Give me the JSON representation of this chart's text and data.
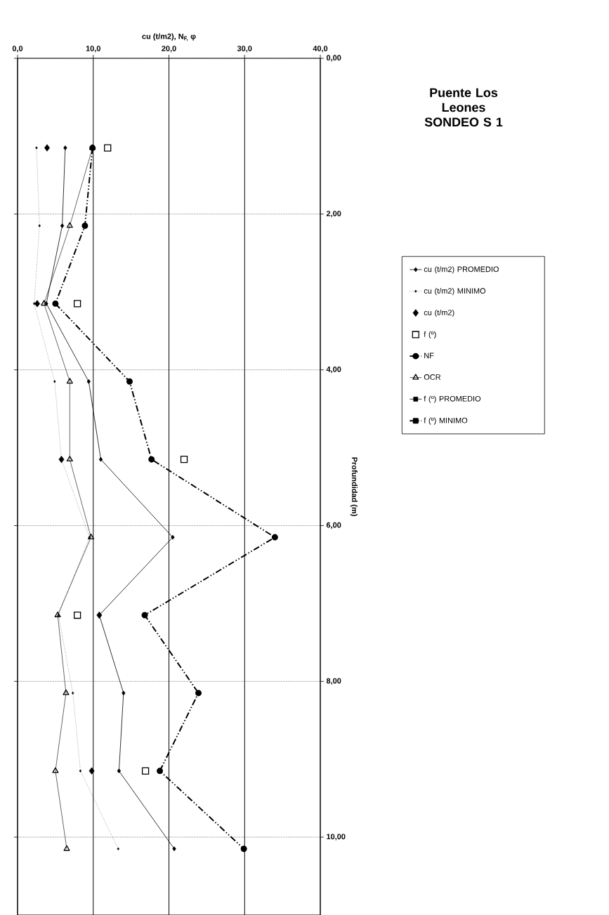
{
  "chart_data": {
    "type": "line",
    "title": "Puente Los Leones SONDEO S 1",
    "xlabel": "cu (t/m2), N$_{F,}$ φ",
    "ylabel": "Profundidad (m)",
    "xlim": [
      0,
      40
    ],
    "ylim": [
      11,
      0
    ],
    "xticks": [
      {
        "value": 0,
        "label": "0,0"
      },
      {
        "value": 10,
        "label": "10,0"
      },
      {
        "value": 20,
        "label": "20,0"
      },
      {
        "value": 30,
        "label": "30,0"
      },
      {
        "value": 40,
        "label": "40,0"
      }
    ],
    "yticks": [
      {
        "value": 0,
        "label": "0,00"
      },
      {
        "value": 2,
        "label": "2,00"
      },
      {
        "value": 4,
        "label": "4,00"
      },
      {
        "value": 6,
        "label": "6,00"
      },
      {
        "value": 8,
        "label": "8,00"
      },
      {
        "value": 10,
        "label": "10,00"
      }
    ],
    "grid": true,
    "legend": "right",
    "series": [
      {
        "name": "cu (t/m2) PROMEDIO",
        "color": "#000000",
        "marker": "diamond",
        "line_style": "solid",
        "x": [
          6.3,
          5.9,
          3.8,
          9.4,
          11.0,
          20.5,
          10.8,
          14.0,
          13.4,
          20.7
        ],
        "values": [
          1.15,
          2.15,
          3.15,
          4.15,
          5.15,
          6.15,
          7.15,
          8.15,
          9.15,
          10.15
        ]
      },
      {
        "name": "cu (t/m2) MINIMO",
        "color": "#000000",
        "marker": "diamond",
        "line_style": "dotted",
        "x": [
          2.5,
          2.9,
          2.2,
          4.9,
          5.8,
          9.5,
          5.4,
          7.3,
          8.3,
          13.3
        ],
        "values": [
          1.15,
          2.15,
          3.15,
          4.15,
          5.15,
          6.15,
          7.15,
          8.15,
          9.15,
          10.15
        ]
      },
      {
        "name": "cu (t/m2)",
        "type": "scatter",
        "color": "#000000",
        "marker": "diamond",
        "x": [
          3.9,
          2.6,
          5.8,
          10.8,
          9.8
        ],
        "values": [
          1.15,
          3.15,
          5.15,
          7.15,
          9.15
        ]
      },
      {
        "name": "f (º)",
        "type": "scatter",
        "color": "#000000",
        "marker": "square",
        "x": [
          11.9,
          7.9,
          22.0,
          7.9,
          16.9
        ],
        "values": [
          1.15,
          3.15,
          5.15,
          7.15,
          9.15
        ]
      },
      {
        "name": "NF",
        "color": "#000000",
        "marker": "circle",
        "line_style": "dashed",
        "x": [
          9.9,
          8.9,
          5.0,
          14.8,
          17.7,
          34.0,
          16.8,
          23.9,
          18.8,
          29.9
        ],
        "values": [
          1.15,
          2.15,
          3.15,
          4.15,
          5.15,
          6.15,
          7.15,
          8.15,
          9.15,
          10.15
        ]
      },
      {
        "name": "OCR",
        "color": "#000000",
        "marker": "triangle",
        "line_style": "solid",
        "x": [
          9.9,
          6.9,
          3.5,
          6.9,
          6.9,
          9.7,
          5.3,
          6.4,
          5.0,
          6.5
        ],
        "values": [
          1.15,
          2.15,
          3.15,
          4.15,
          5.15,
          6.15,
          7.15,
          8.15,
          9.15,
          10.15
        ]
      },
      {
        "name": "f (º) PROMEDIO",
        "color": "#000000",
        "marker": "square",
        "line_style": "solid"
      },
      {
        "name": "f (º) MINIMO",
        "color": "#000000",
        "marker": "square",
        "line_style": "dashed"
      }
    ]
  }
}
